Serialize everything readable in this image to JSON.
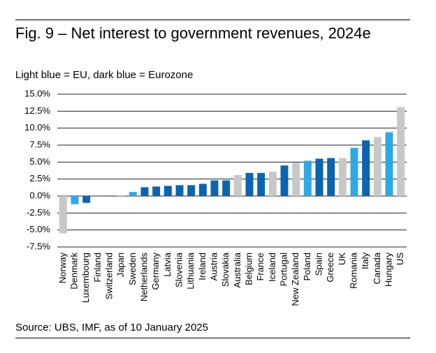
{
  "chart_data": {
    "type": "bar",
    "title": "Fig. 9 – Net interest to government revenues, 2024e",
    "subtitle": "Light blue = EU, dark blue = Eurozone",
    "source": "Source: UBS, IMF, as of 10 January 2025",
    "categories": [
      "Norway",
      "Denmark",
      "Luxembourg",
      "Finland",
      "Switzerland",
      "Japan",
      "Sweden",
      "Netherlands",
      "Germany",
      "Latvia",
      "Slovenia",
      "Lithuania",
      "Ireland",
      "Austria",
      "Slovakia",
      "Australia",
      "Belgium",
      "France",
      "Iceland",
      "Portugal",
      "New Zealand",
      "Poland",
      "Spain",
      "Greece",
      "UK",
      "Romania",
      "Italy",
      "Canada",
      "Hungary",
      "US"
    ],
    "values": [
      -5.5,
      -1.2,
      -1.0,
      0.0,
      0.0,
      0.1,
      0.6,
      1.3,
      1.4,
      1.5,
      1.6,
      1.6,
      1.8,
      2.3,
      2.3,
      3.1,
      3.4,
      3.4,
      3.6,
      4.5,
      4.9,
      5.2,
      5.5,
      5.6,
      5.6,
      7.1,
      8.2,
      8.7,
      9.4,
      13.1
    ],
    "colors": [
      "#c8c8c8",
      "#2fa8e6",
      "#0b64b0",
      "#0b64b0",
      "#c8c8c8",
      "#c8c8c8",
      "#2fa8e6",
      "#0b64b0",
      "#0b64b0",
      "#0b64b0",
      "#0b64b0",
      "#0b64b0",
      "#0b64b0",
      "#0b64b0",
      "#0b64b0",
      "#c8c8c8",
      "#0b64b0",
      "#0b64b0",
      "#c8c8c8",
      "#0b64b0",
      "#c8c8c8",
      "#2fa8e6",
      "#0b64b0",
      "#0b64b0",
      "#c8c8c8",
      "#2fa8e6",
      "#0b64b0",
      "#c8c8c8",
      "#2fa8e6",
      "#c8c8c8"
    ],
    "ylim": [
      -7.5,
      15
    ],
    "yticks": [
      {
        "value": -7.5,
        "label": "-7.5%"
      },
      {
        "value": -5,
        "label": "-5.0%"
      },
      {
        "value": -2.5,
        "label": "-2.5%"
      },
      {
        "value": 0,
        "label": "0.0%"
      },
      {
        "value": 2.5,
        "label": "2.5%"
      },
      {
        "value": 5,
        "label": "5.0%"
      },
      {
        "value": 7.5,
        "label": "7.5%"
      },
      {
        "value": 10,
        "label": "10.0%"
      },
      {
        "value": 12.5,
        "label": "12.5%"
      },
      {
        "value": 15,
        "label": "15.0%"
      }
    ],
    "grid": true
  }
}
